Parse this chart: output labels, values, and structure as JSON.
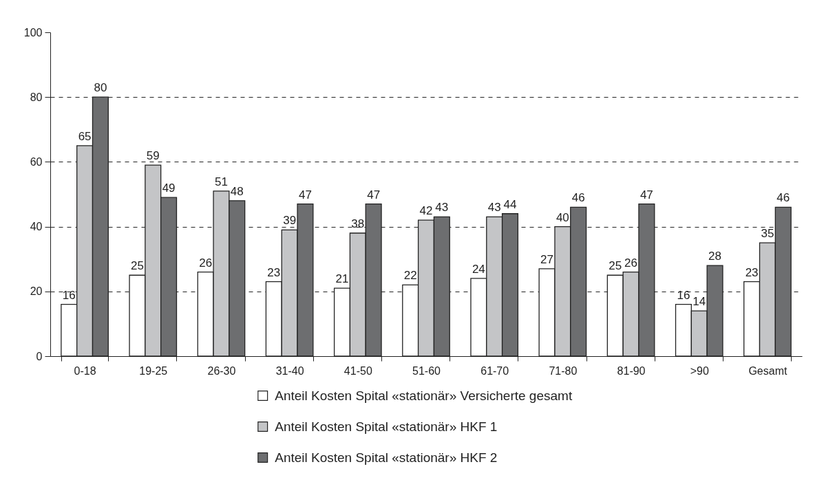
{
  "chart_data": {
    "type": "bar",
    "categories": [
      "0-18",
      "19-25",
      "26-30",
      "31-40",
      "41-50",
      "51-60",
      "61-70",
      "71-80",
      "81-90",
      ">90",
      "Gesamt"
    ],
    "series": [
      {
        "name": "Anteil Kosten Spital «stationär» Versicherte gesamt",
        "color": "#ffffff",
        "values": [
          16,
          25,
          26,
          23,
          21,
          22,
          24,
          27,
          25,
          16,
          23
        ]
      },
      {
        "name": "Anteil Kosten Spital «stationär» HKF 1",
        "color": "#c4c5c7",
        "values": [
          65,
          59,
          51,
          39,
          38,
          42,
          43,
          40,
          26,
          14,
          35
        ]
      },
      {
        "name": "Anteil Kosten Spital «stationär» HKF 2",
        "color": "#6d6e70",
        "values": [
          80,
          49,
          48,
          47,
          47,
          43,
          44,
          46,
          47,
          28,
          46
        ]
      }
    ],
    "ylim": [
      0,
      100
    ],
    "yticks": [
      0,
      20,
      40,
      60,
      80,
      100
    ],
    "grid": "y",
    "legend": "bottom",
    "data_labels": true
  }
}
